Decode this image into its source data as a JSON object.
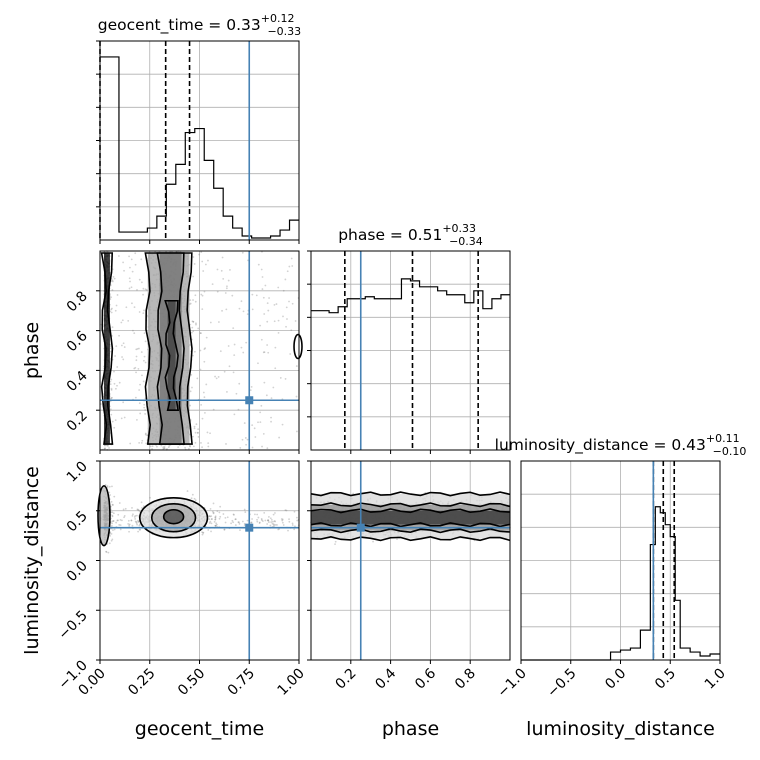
{
  "chart_data": {
    "type": "corner",
    "colors": {
      "truth": "#4682b4",
      "hist": "#000000",
      "scatter": "#7f7f7f",
      "grid": "#b0b0b0"
    },
    "parameters": [
      {
        "key": "geocent_time",
        "label": "geocent_time",
        "range": [
          0,
          1
        ],
        "ticks": [
          "0.00",
          "0.25",
          "0.50",
          "0.75",
          "1.00"
        ],
        "tick_values": [
          0,
          0.25,
          0.5,
          0.75,
          1.0
        ],
        "truth": 0.75,
        "title_prefix": "geocent_time = ",
        "median": "0.33",
        "plus": "+0.12",
        "minus": "−0.33",
        "quantiles": [
          0.0,
          0.33,
          0.45
        ],
        "histogram": [
          0.92,
          0.92,
          0.04,
          0.04,
          0.04,
          0.06,
          0.12,
          0.28,
          0.38,
          0.54,
          0.56,
          0.4,
          0.26,
          0.12,
          0.06,
          0.02,
          0.01,
          0.01,
          0.02,
          0.05,
          0.1
        ]
      },
      {
        "key": "phase",
        "label": "phase",
        "range": [
          0,
          1
        ],
        "ticks": [
          "0.2",
          "0.4",
          "0.6",
          "0.8"
        ],
        "tick_values": [
          0.2,
          0.4,
          0.6,
          0.8
        ],
        "truth": 0.25,
        "title_prefix": "phase = ",
        "median": "0.51",
        "plus": "+0.33",
        "minus": "−0.34",
        "quantiles": [
          0.17,
          0.51,
          0.84
        ],
        "histogram": [
          0.7,
          0.7,
          0.69,
          0.72,
          0.76,
          0.76,
          0.77,
          0.76,
          0.76,
          0.76,
          0.86,
          0.85,
          0.82,
          0.82,
          0.8,
          0.78,
          0.78,
          0.74,
          0.8,
          0.71,
          0.76,
          0.78
        ]
      },
      {
        "key": "luminosity_distance",
        "label": "luminosity_distance",
        "range": [
          -1,
          1
        ],
        "ticks": [
          "−1.0",
          "−0.5",
          "0.0",
          "0.5",
          "1.0"
        ],
        "tick_values": [
          -1,
          -0.5,
          0,
          0.5,
          1
        ],
        "truth": 0.33,
        "title_prefix": "luminosity_distance = ",
        "median": "0.43",
        "plus": "+0.11",
        "minus": "−0.10",
        "quantiles": [
          0.33,
          0.43,
          0.54
        ],
        "histogram_edges": [
          -1.0,
          -0.9,
          -0.8,
          -0.7,
          -0.6,
          -0.5,
          -0.4,
          -0.3,
          -0.2,
          -0.1,
          0.0,
          0.1,
          0.2,
          0.3,
          0.35,
          0.4,
          0.45,
          0.5,
          0.55,
          0.6,
          0.7,
          0.8,
          0.9,
          1.0
        ],
        "histogram": [
          0,
          0,
          0,
          0,
          0,
          0,
          0,
          0,
          0,
          0.04,
          0.05,
          0.06,
          0.15,
          0.58,
          0.77,
          0.74,
          0.68,
          0.62,
          0.3,
          0.06,
          0.04,
          0.02,
          0.03
        ]
      }
    ],
    "contours": {
      "geocent_time_vs_phase": {
        "bands": [
          {
            "x": [
              0.02,
              0.05
            ],
            "y": [
              0.03,
              0.99
            ],
            "level": 0.95
          },
          {
            "x": [
              0.24,
              0.45
            ],
            "y": [
              0.03,
              0.99
            ],
            "level": 0.35
          },
          {
            "x": [
              0.3,
              0.41
            ],
            "y": [
              0.03,
              0.99
            ],
            "level": 0.55
          },
          {
            "x": [
              0.34,
              0.38
            ],
            "y": [
              0.2,
              0.75
            ],
            "level": 0.75
          }
        ],
        "islands": [
          {
            "x": 0.995,
            "y": 0.52,
            "rx": 0.02,
            "ry": 0.06
          }
        ]
      },
      "geocent_time_vs_luminosity_distance": {
        "blobs": [
          {
            "x": 0.37,
            "y": 0.43,
            "rx": 0.17,
            "ry": 0.2
          },
          {
            "x": 0.37,
            "y": 0.43,
            "rx": 0.11,
            "ry": 0.14
          },
          {
            "x": 0.37,
            "y": 0.44,
            "rx": 0.05,
            "ry": 0.07
          },
          {
            "x": 0.02,
            "y": 0.45,
            "rx": 0.03,
            "ry": 0.3
          }
        ]
      },
      "phase_vs_luminosity_distance": {
        "bands_y": [
          [
            0.22,
            0.67
          ],
          [
            0.3,
            0.56
          ],
          [
            0.36,
            0.5
          ]
        ]
      }
    }
  }
}
